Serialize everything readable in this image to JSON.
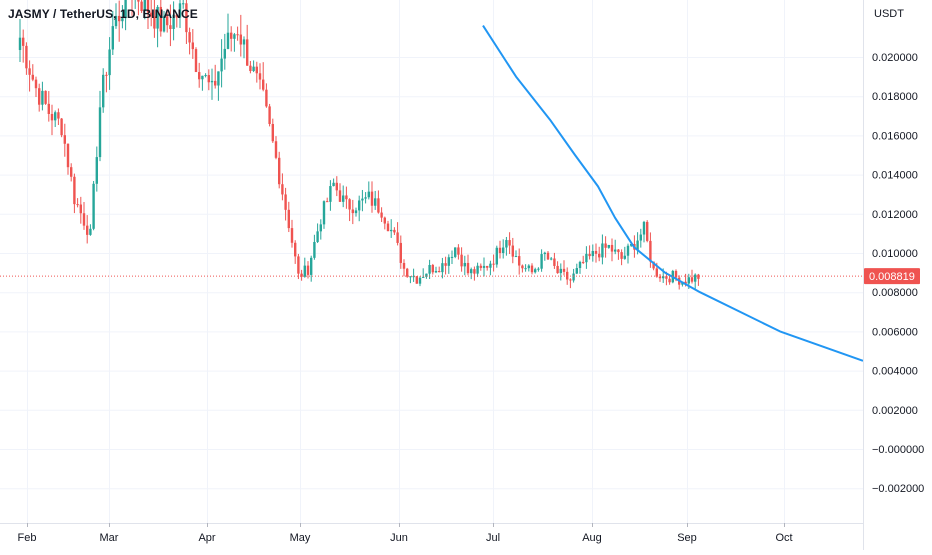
{
  "header": {
    "symbol_title": "JASMY / TetherUS, 1D, BINANCE"
  },
  "price_axis": {
    "unit_label": "USDT",
    "tick_labels": [
      "0.020000",
      "0.018000",
      "0.016000",
      "0.014000",
      "0.012000",
      "0.010000",
      "0.008000",
      "0.006000",
      "0.004000",
      "0.002000",
      "−0.000000",
      "−0.002000"
    ],
    "last_price_label": "0.008819"
  },
  "time_axis": {
    "labels": [
      "Feb",
      "Mar",
      "Apr",
      "May",
      "Jun",
      "Jul",
      "Aug",
      "Sep",
      "Oct"
    ]
  },
  "colors": {
    "up": "#26a69a",
    "down": "#ef5350",
    "ma_line": "#2196f3",
    "grid": "#f0f3fa",
    "axis_text": "#131722",
    "last_price_bg": "#ef5350"
  },
  "chart_data": {
    "type": "candlestick",
    "title": "JASMY / TetherUS, 1D, BINANCE",
    "y_unit": "USDT",
    "ylim": [
      -0.0025,
      0.0216
    ],
    "y_ticks": [
      0.02,
      0.018,
      0.016,
      0.014,
      0.012,
      0.01,
      0.008,
      0.006,
      0.004,
      0.002,
      0.0,
      -0.002
    ],
    "x_ticks": [
      "Feb",
      "Mar",
      "Apr",
      "May",
      "Jun",
      "Jul",
      "Aug",
      "Sep",
      "Oct"
    ],
    "last_price": 0.008819,
    "grid": true,
    "close_anchors": [
      [
        0,
        0.021
      ],
      [
        5,
        0.0184
      ],
      [
        9,
        0.0172
      ],
      [
        13,
        0.0165
      ],
      [
        17,
        0.0128
      ],
      [
        22,
        0.0109
      ],
      [
        25,
        0.0175
      ],
      [
        29,
        0.0215
      ],
      [
        35,
        0.0235
      ],
      [
        45,
        0.0215
      ],
      [
        51,
        0.0225
      ],
      [
        55,
        0.0198
      ],
      [
        60,
        0.0182
      ],
      [
        64,
        0.0205
      ],
      [
        68,
        0.0215
      ],
      [
        72,
        0.0196
      ],
      [
        76,
        0.0178
      ],
      [
        80,
        0.0148
      ],
      [
        84,
        0.0115
      ],
      [
        87,
        0.0088
      ],
      [
        90,
        0.0092
      ],
      [
        94,
        0.0118
      ],
      [
        98,
        0.0135
      ],
      [
        102,
        0.0124
      ],
      [
        106,
        0.0125
      ],
      [
        109,
        0.0128
      ],
      [
        113,
        0.0122
      ],
      [
        117,
        0.0108
      ],
      [
        120,
        0.0092
      ],
      [
        124,
        0.0087
      ],
      [
        128,
        0.0092
      ],
      [
        132,
        0.0094
      ],
      [
        136,
        0.0103
      ],
      [
        140,
        0.009
      ],
      [
        144,
        0.0091
      ],
      [
        148,
        0.0097
      ],
      [
        152,
        0.0109
      ],
      [
        156,
        0.0094
      ],
      [
        160,
        0.009
      ],
      [
        164,
        0.0099
      ],
      [
        168,
        0.009
      ],
      [
        172,
        0.0086
      ],
      [
        176,
        0.0095
      ],
      [
        180,
        0.01
      ],
      [
        184,
        0.0103
      ],
      [
        188,
        0.0097
      ],
      [
        192,
        0.0105
      ],
      [
        195,
        0.0112
      ],
      [
        198,
        0.0091
      ],
      [
        201,
        0.0088
      ],
      [
        204,
        0.0088
      ],
      [
        207,
        0.0086
      ],
      [
        210,
        0.0087
      ],
      [
        212,
        0.0088
      ]
    ],
    "moving_average": {
      "points": [
        [
          "Jun 25",
          0.0216
        ],
        [
          "Jul 10",
          0.019
        ],
        [
          "Jul 25",
          0.0168
        ],
        [
          "Aug 05",
          0.015
        ],
        [
          "Aug 15",
          0.0134
        ],
        [
          "Aug 23",
          0.0118
        ],
        [
          "Sep 01",
          0.0103
        ],
        [
          "Sep 15",
          0.009
        ],
        [
          "Sep 25",
          0.008
        ],
        [
          "Oct 10",
          0.006
        ],
        [
          "Oct 31",
          0.0045
        ]
      ]
    }
  }
}
